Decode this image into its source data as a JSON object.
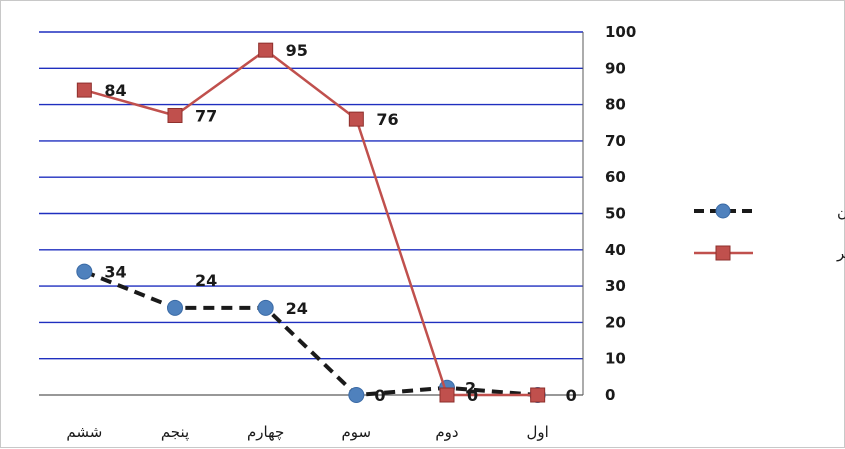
{
  "chart_data": {
    "type": "line",
    "categories": [
      "ششم",
      "پنجم",
      "چهارم",
      "سوم",
      "دوم",
      "اول"
    ],
    "yticks": [
      "0",
      "10",
      "20",
      "30",
      "40",
      "50",
      "60",
      "70",
      "80",
      "90",
      "100"
    ],
    "ylim": [
      0,
      100
    ],
    "grid": true,
    "legend_position": "right",
    "series": [
      {
        "name": "شعرکهن",
        "values": [
          34,
          24,
          24,
          0,
          2,
          0
        ],
        "labels": [
          "34",
          "24",
          "24",
          "0",
          "2",
          ""
        ],
        "color": "#1a1a1a",
        "marker_color": "#4f81bd",
        "marker": "circle",
        "dash": true
      },
      {
        "name": "شعرمعاصر",
        "values": [
          84,
          77,
          95,
          76,
          0,
          0
        ],
        "labels": [
          "84",
          "77",
          "95",
          "76",
          "0",
          "0"
        ],
        "color": "#c0504d",
        "marker_color": "#c0504d",
        "marker": "square",
        "dash": false
      }
    ],
    "colors": {
      "grid": "#1f2fbf",
      "axis": "#5a5a5a"
    }
  }
}
